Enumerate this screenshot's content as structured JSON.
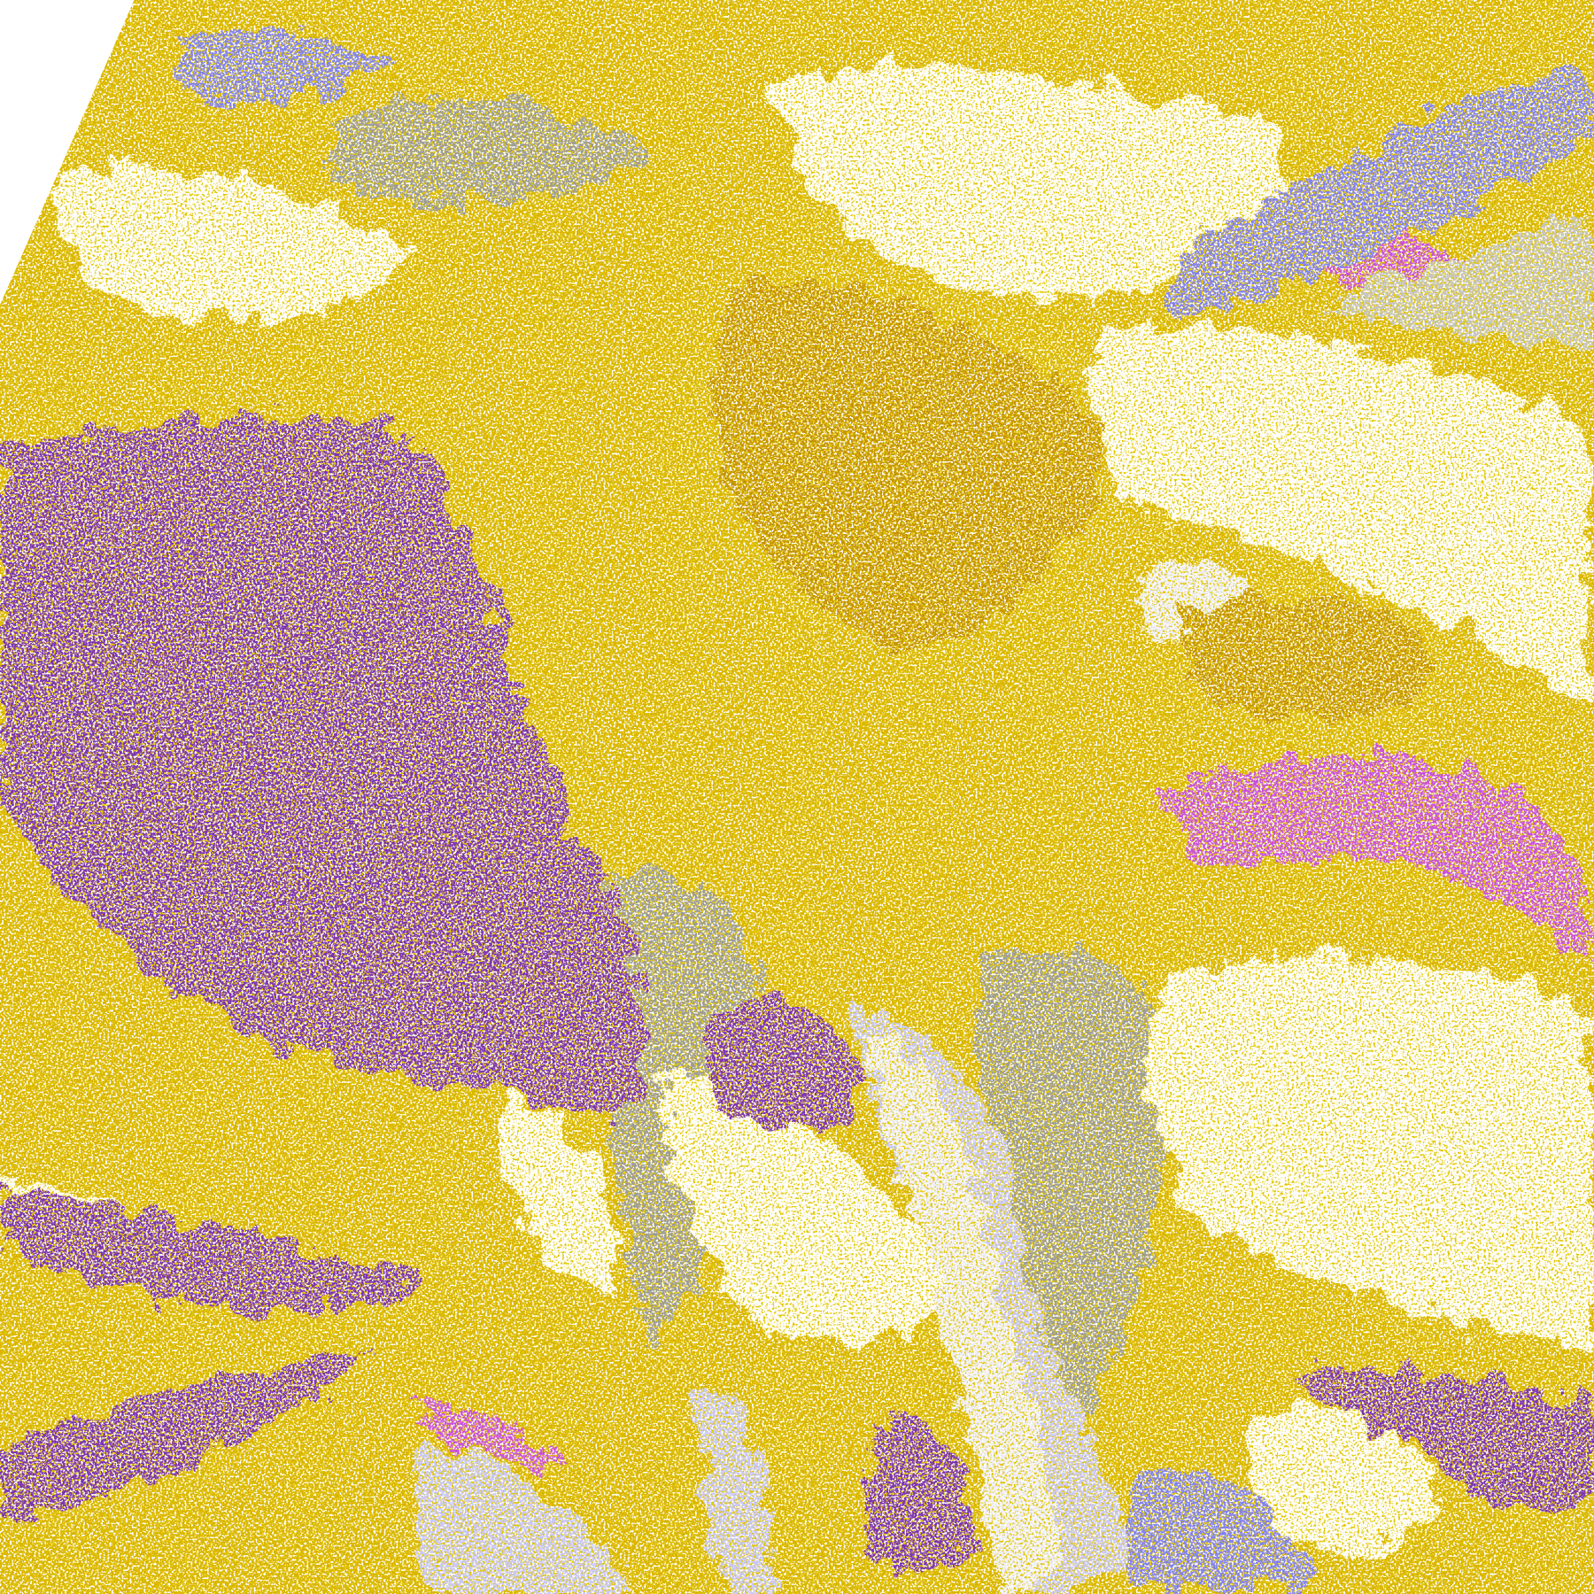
{
  "map": {
    "type": "satellite cloud-classification composite",
    "palette": {
      "no_data": "#ffffff",
      "clear": "#ffffff",
      "gold": "#d9b400",
      "dark_gold": "#c49200",
      "gray": "#9a9a9a",
      "light_gray": "#c4c4c4",
      "purple": "#7a30b4",
      "magenta": "#c850e0",
      "periwinkle": "#8080f0",
      "lavender": "#c8c8ff",
      "pale_lavender": "#eeeeff"
    }
  }
}
